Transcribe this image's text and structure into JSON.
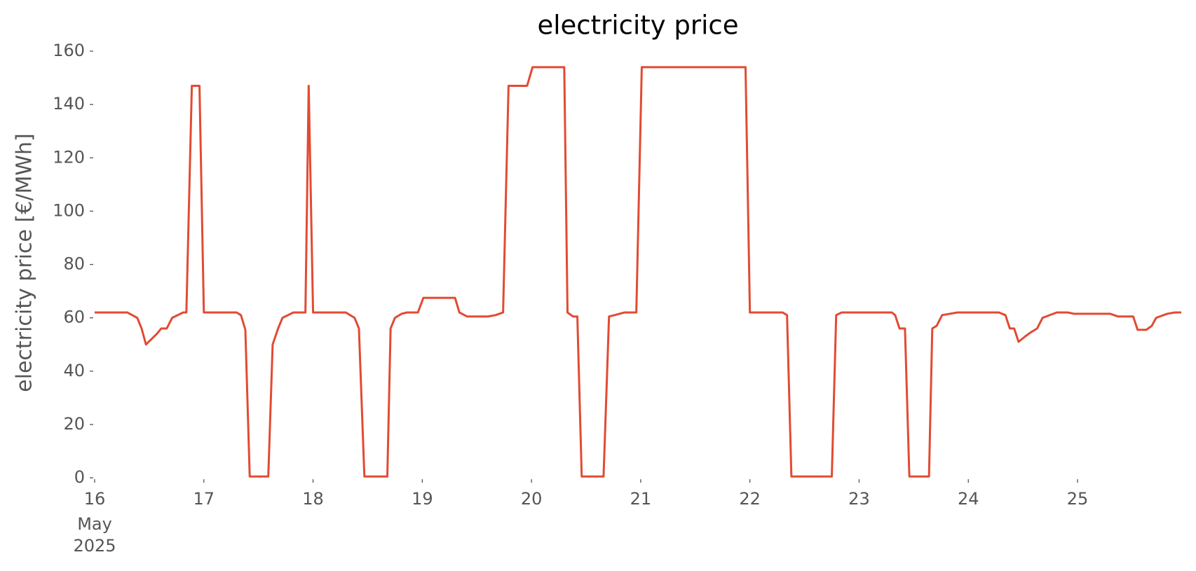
{
  "chart_data": {
    "type": "line",
    "title": "electricity price",
    "ylabel": "electricity price [€/MWh]",
    "x_start_month": "May",
    "x_start_year": "2025",
    "xlim": [
      16,
      25.95
    ],
    "xticks": [
      16,
      17,
      18,
      19,
      20,
      21,
      22,
      23,
      24,
      25
    ],
    "ylim": [
      0,
      160
    ],
    "yticks": [
      0,
      20,
      40,
      60,
      80,
      100,
      120,
      140,
      160
    ],
    "grid": false,
    "series": [
      {
        "name": "electricity price",
        "color": "#e24a33",
        "x": [
          16,
          16.3,
          16.39,
          16.43,
          16.47,
          16.52,
          16.57,
          16.61,
          16.66,
          16.71,
          16.81,
          16.84,
          16.89,
          16.96,
          17,
          17.3,
          17.34,
          17.38,
          17.42,
          17.59,
          17.63,
          17.68,
          17.72,
          17.82,
          17.93,
          17.96,
          18,
          18.3,
          18.34,
          18.38,
          18.42,
          18.47,
          18.68,
          18.71,
          18.75,
          18.81,
          18.86,
          18.96,
          19.01,
          19.3,
          19.34,
          19.41,
          19.6,
          19.67,
          19.74,
          19.79,
          19.96,
          20.01,
          20.3,
          20.33,
          20.38,
          20.42,
          20.46,
          20.66,
          20.71,
          20.76,
          20.85,
          20.96,
          21.01,
          21.96,
          22,
          22.3,
          22.34,
          22.38,
          22.75,
          22.79,
          22.84,
          23.3,
          23.33,
          23.37,
          23.42,
          23.46,
          23.64,
          23.67,
          23.71,
          23.76,
          23.9,
          24.28,
          24.34,
          24.38,
          24.42,
          24.46,
          24.52,
          24.57,
          24.63,
          24.68,
          24.81,
          24.91,
          24.97,
          25.3,
          25.37,
          25.51,
          25.55,
          25.63,
          25.68,
          25.72,
          25.82,
          25.89,
          25.95
        ],
        "values": [
          62,
          62,
          60,
          56,
          50,
          52,
          54,
          56,
          56,
          60,
          62,
          62,
          147,
          147,
          62,
          62,
          61,
          55.5,
          0.5,
          0.5,
          50,
          56,
          60,
          62,
          62,
          147,
          62,
          62,
          61,
          60,
          56,
          0.5,
          0.5,
          56,
          60,
          61.5,
          62,
          62,
          67.5,
          67.5,
          62,
          60.5,
          60.5,
          61,
          62,
          147,
          147,
          154,
          154,
          62,
          60.5,
          60.5,
          0.5,
          0.5,
          60.5,
          61,
          62,
          62,
          154,
          154,
          62,
          62,
          61,
          0.5,
          0.5,
          61,
          62,
          62,
          61,
          56,
          56,
          0.5,
          0.5,
          56,
          57,
          61,
          62,
          62,
          61,
          56,
          56,
          51,
          53,
          54.5,
          56,
          60,
          62,
          62,
          61.5,
          61.5,
          60.5,
          60.5,
          55.5,
          55.5,
          57,
          60,
          61.5,
          62,
          62
        ]
      }
    ]
  }
}
